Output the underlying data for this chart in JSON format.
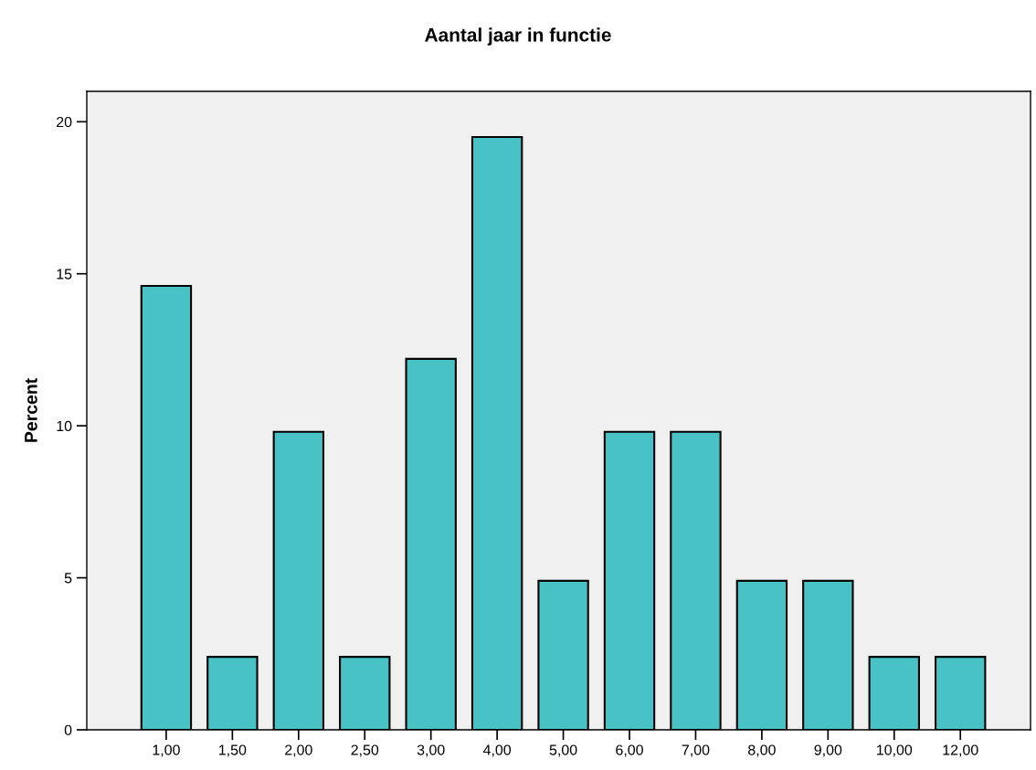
{
  "chart_data": {
    "type": "bar",
    "title": "Aantal jaar in functie",
    "ylabel": "Percent",
    "categories": [
      "1,00",
      "1,50",
      "2,00",
      "2,50",
      "3,00",
      "4,00",
      "5,00",
      "6,00",
      "7,00",
      "8,00",
      "9,00",
      "10,00",
      "12,00"
    ],
    "values": [
      14.6,
      2.4,
      9.8,
      2.4,
      12.2,
      19.5,
      4.9,
      9.8,
      9.8,
      4.9,
      4.9,
      2.4,
      2.4
    ],
    "color": "#48c2c5",
    "ylim": [
      0,
      21
    ],
    "yticks": [
      0,
      5,
      10,
      15,
      20
    ],
    "grid": false
  }
}
